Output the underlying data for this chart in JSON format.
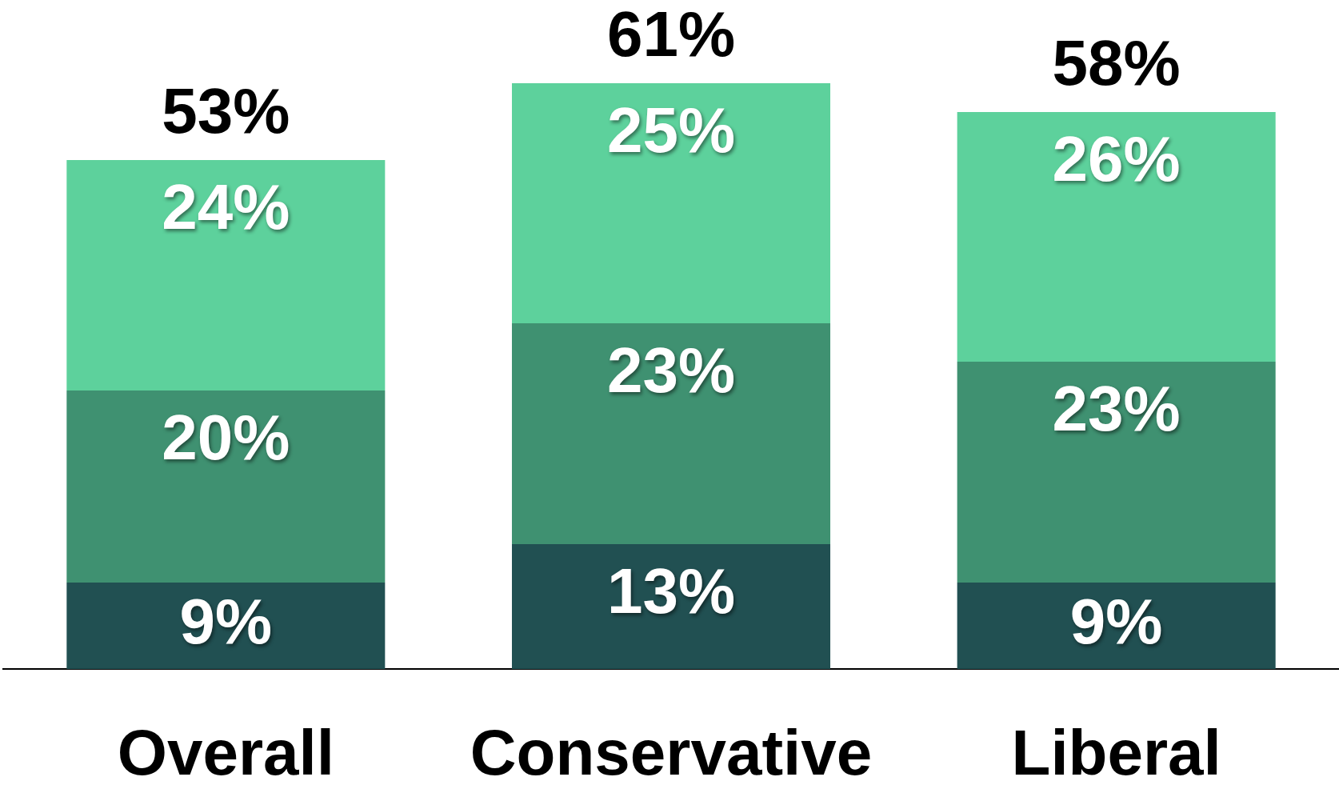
{
  "chart_data": {
    "type": "bar",
    "stacked": true,
    "categories": [
      "Overall",
      "Conservative",
      "Liberal"
    ],
    "series": [
      {
        "color": "#215052",
        "values": [
          9,
          13,
          9
        ],
        "value_labels": [
          "9%",
          "13%",
          "9%"
        ]
      },
      {
        "color": "#3f9171",
        "values": [
          20,
          23,
          23
        ],
        "value_labels": [
          "20%",
          "23%",
          "23%"
        ]
      },
      {
        "color": "#5dd19c",
        "values": [
          24,
          25,
          26
        ],
        "value_labels": [
          "24%",
          "25%",
          "26%"
        ]
      }
    ],
    "totals": [
      "53%",
      "61%",
      "58%"
    ],
    "tick_labels": "x",
    "grid": false,
    "legend": false
  }
}
